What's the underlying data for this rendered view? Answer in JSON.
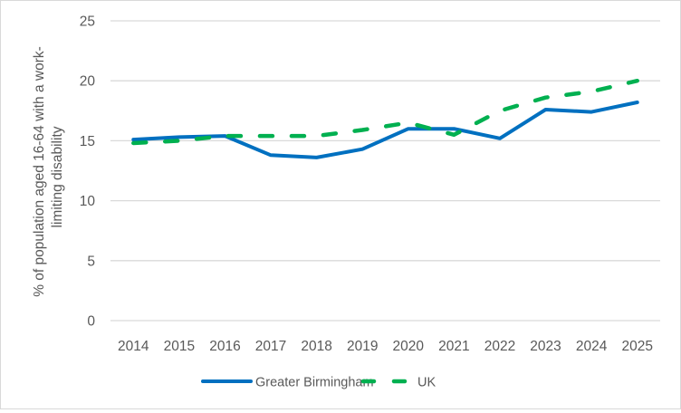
{
  "chart_data": {
    "type": "line",
    "title": "",
    "xlabel": "",
    "ylabel": "% of population aged 16-64 with a work-limiting disability",
    "ylabel_lines": [
      "% of population aged 16-64 with a work-",
      "limiting disability"
    ],
    "categories": [
      "2014",
      "2015",
      "2016",
      "2017",
      "2018",
      "2019",
      "2020",
      "2021",
      "2022",
      "2023",
      "2024",
      "2025"
    ],
    "ylim": [
      0,
      25
    ],
    "yticks": [
      0,
      5,
      10,
      15,
      20,
      25
    ],
    "ytick_labels": [
      "0",
      "5",
      "10",
      "15",
      "20",
      "25"
    ],
    "grid": true,
    "legend_position": "bottom",
    "series": [
      {
        "name": "Greater Birmingham",
        "style": "solid",
        "color": "#0070C0",
        "values": [
          15.1,
          15.3,
          15.4,
          13.8,
          13.6,
          14.3,
          16.0,
          16.0,
          15.2,
          17.6,
          17.4,
          18.2
        ]
      },
      {
        "name": "UK",
        "style": "dashed",
        "color": "#00B050",
        "values": [
          14.8,
          15.0,
          15.4,
          15.4,
          15.4,
          15.9,
          16.5,
          15.5,
          17.5,
          18.6,
          19.1,
          20.0
        ]
      }
    ]
  },
  "colors": {
    "gridline": "#d9d9d9",
    "text": "#595959",
    "border": "#d9d9d9"
  }
}
